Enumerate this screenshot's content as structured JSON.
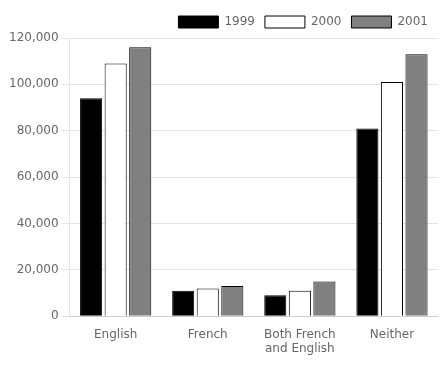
{
  "chart_data": {
    "type": "bar",
    "categories": [
      "English",
      "French",
      "Both French\nand English",
      "Neither"
    ],
    "series": [
      {
        "name": "1999",
        "color": "#000000",
        "values": [
          94000,
          11000,
          9000,
          81000
        ]
      },
      {
        "name": "2000",
        "color": "#ffffff",
        "values": [
          109000,
          12000,
          11000,
          101000
        ]
      },
      {
        "name": "2001",
        "color": "#808080",
        "values": [
          116000,
          13000,
          15000,
          113000
        ]
      }
    ],
    "ylim": [
      0,
      120000
    ],
    "yticks": [
      0,
      {
        "value": 20000,
        "label": "20,000"
      },
      {
        "value": 40000,
        "label": "40,000"
      },
      {
        "value": 60000,
        "label": "60,000"
      },
      {
        "value": 80000,
        "label": "80,000"
      },
      {
        "value": 100000,
        "label": "100,000"
      },
      {
        "value": 120000,
        "label": "120,000"
      }
    ],
    "grid": true,
    "legend": "upper right"
  }
}
